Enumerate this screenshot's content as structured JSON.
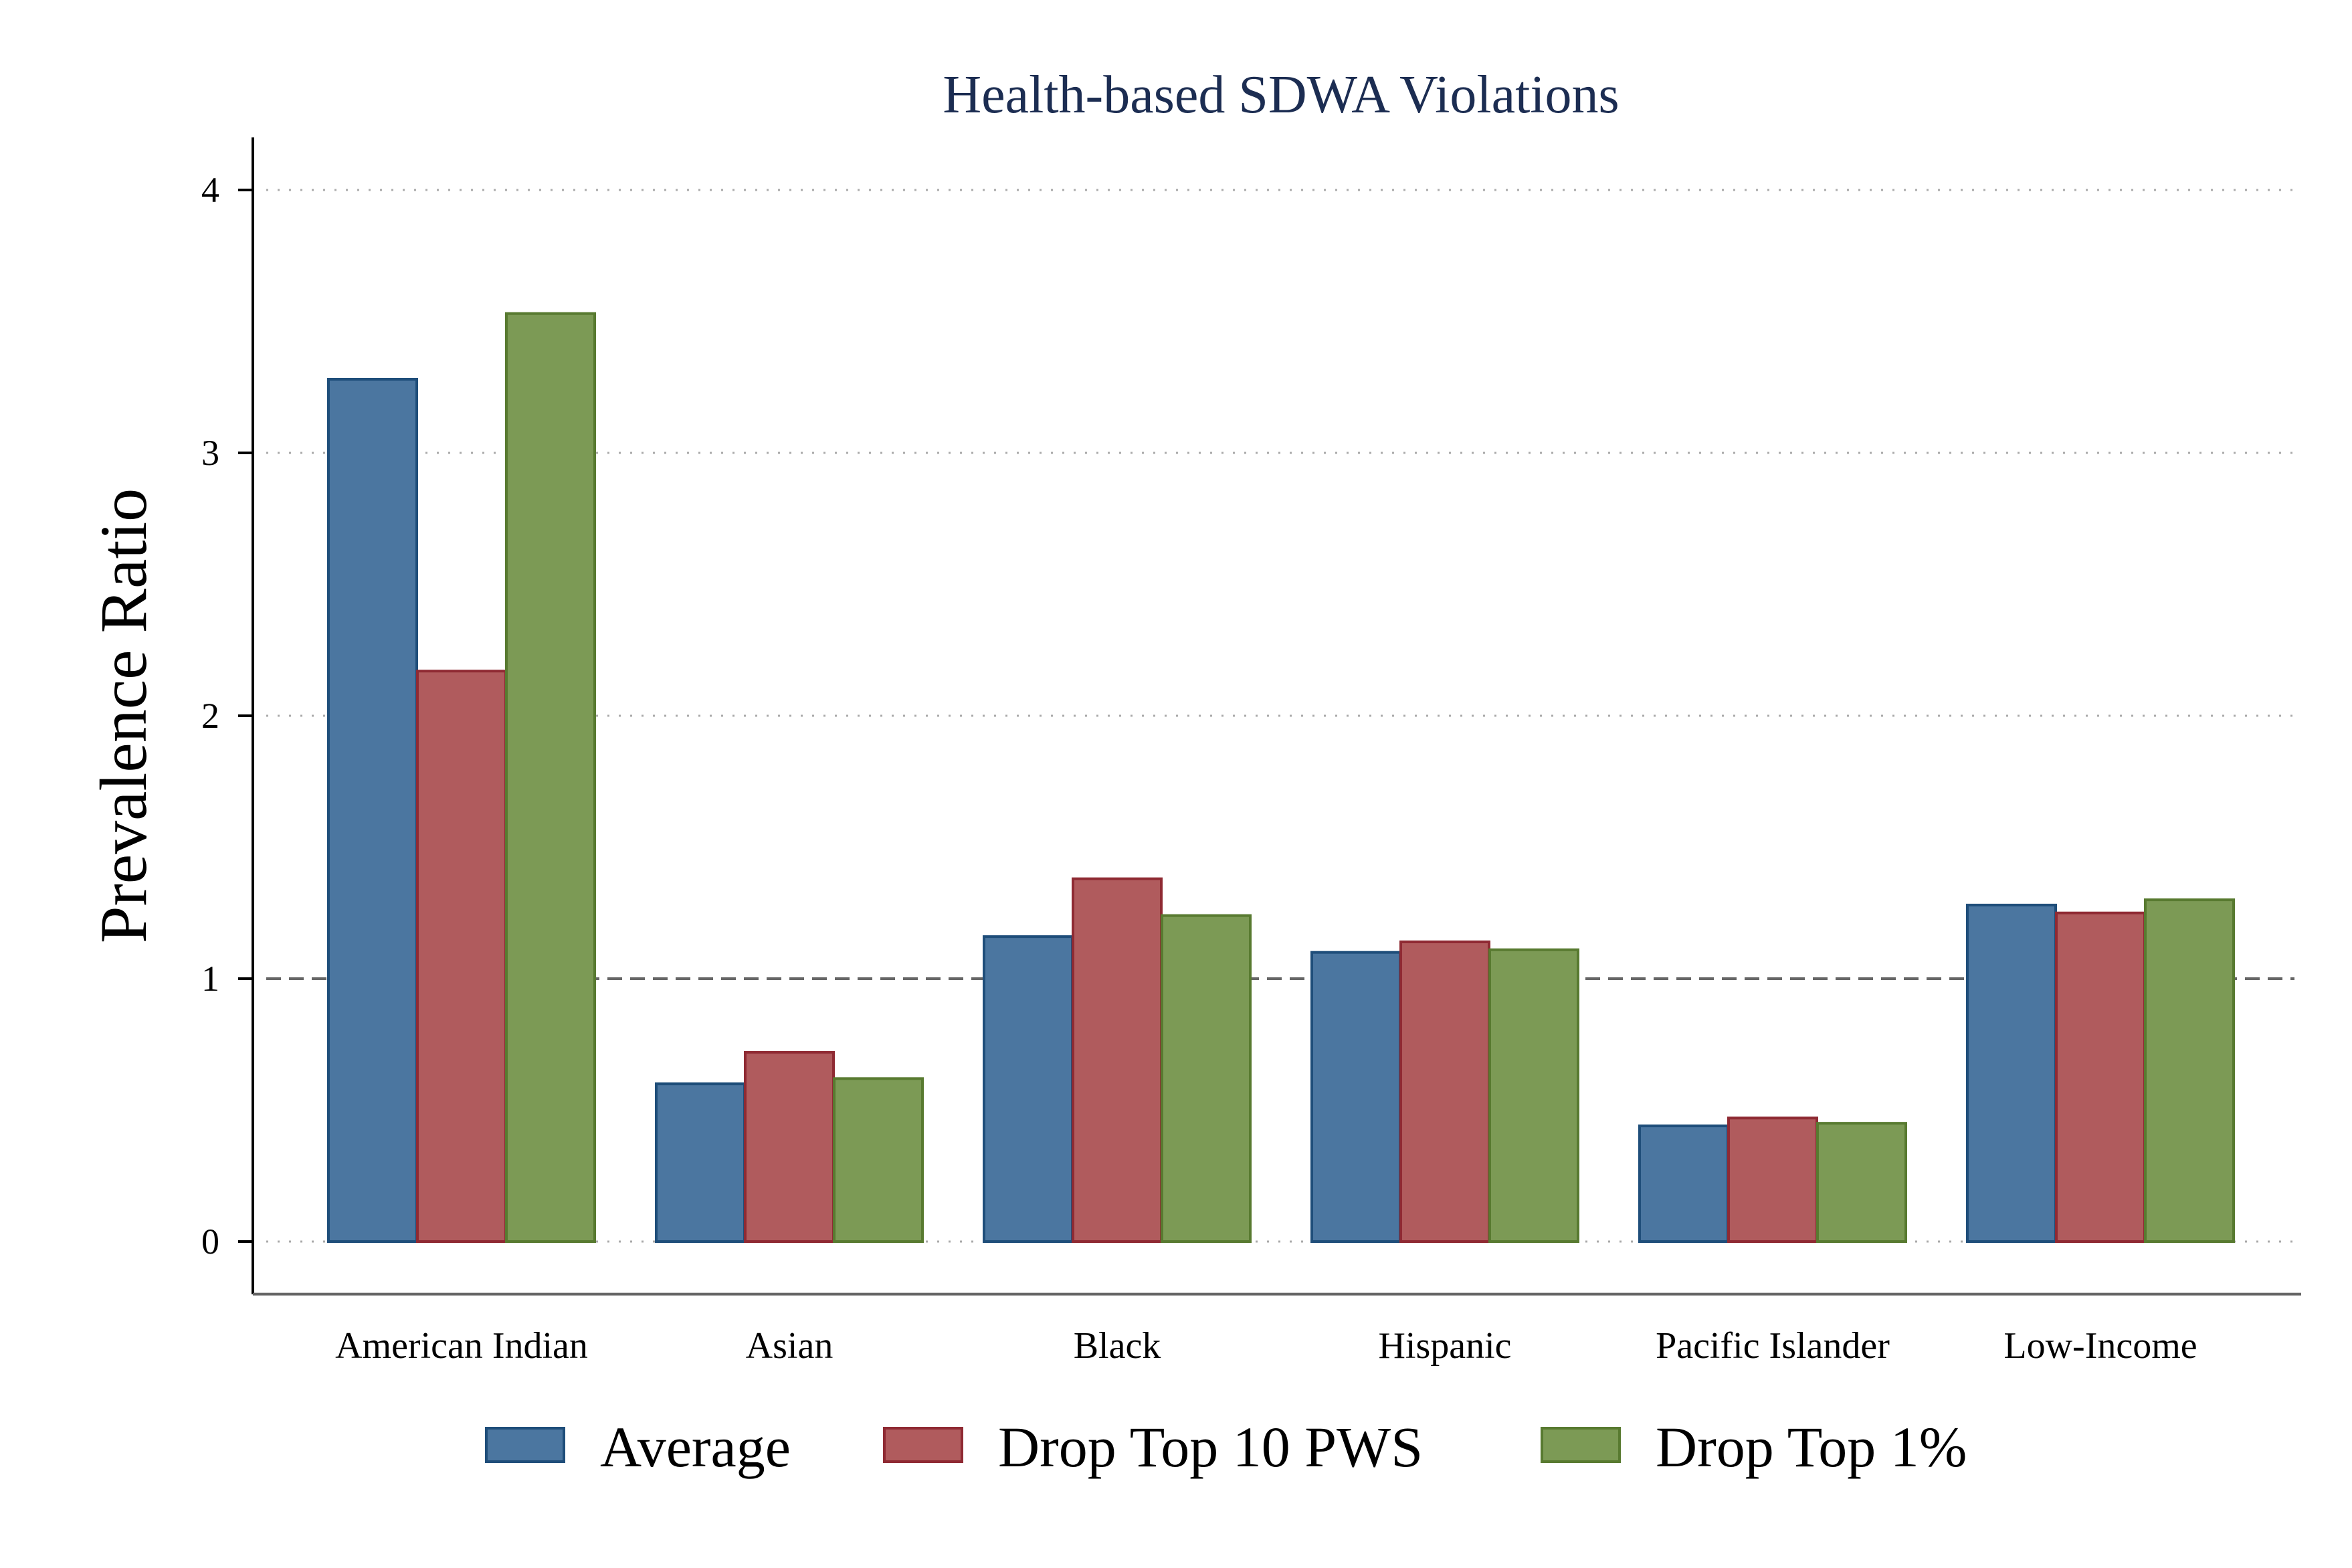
{
  "chart_data": {
    "type": "bar",
    "title": "Health-based SDWA Violations",
    "ylabel": "Prevalence Ratio",
    "xlabel": "",
    "ylim": [
      -0.2,
      4.2
    ],
    "yticks": [
      0,
      1,
      2,
      3,
      4
    ],
    "reference_line": 1,
    "grid": "horizontal-dotted",
    "legend_position": "bottom",
    "categories": [
      "American Indian",
      "Asian",
      "Black",
      "Hispanic",
      "Pacific Islander",
      "Low-Income"
    ],
    "series": [
      {
        "name": "Average",
        "color": "#4b76a0",
        "edge": "#1f4e7a",
        "values": [
          3.28,
          0.6,
          1.16,
          1.1,
          0.44,
          1.28
        ]
      },
      {
        "name": "Drop Top 10 PWS",
        "color": "#b05b5d",
        "edge": "#8f2a33",
        "values": [
          2.17,
          0.72,
          1.38,
          1.14,
          0.47,
          1.25
        ]
      },
      {
        "name": "Drop Top 1%",
        "color": "#7c9a55",
        "edge": "#587a30",
        "values": [
          3.53,
          0.62,
          1.24,
          1.11,
          0.45,
          1.3
        ]
      }
    ]
  }
}
